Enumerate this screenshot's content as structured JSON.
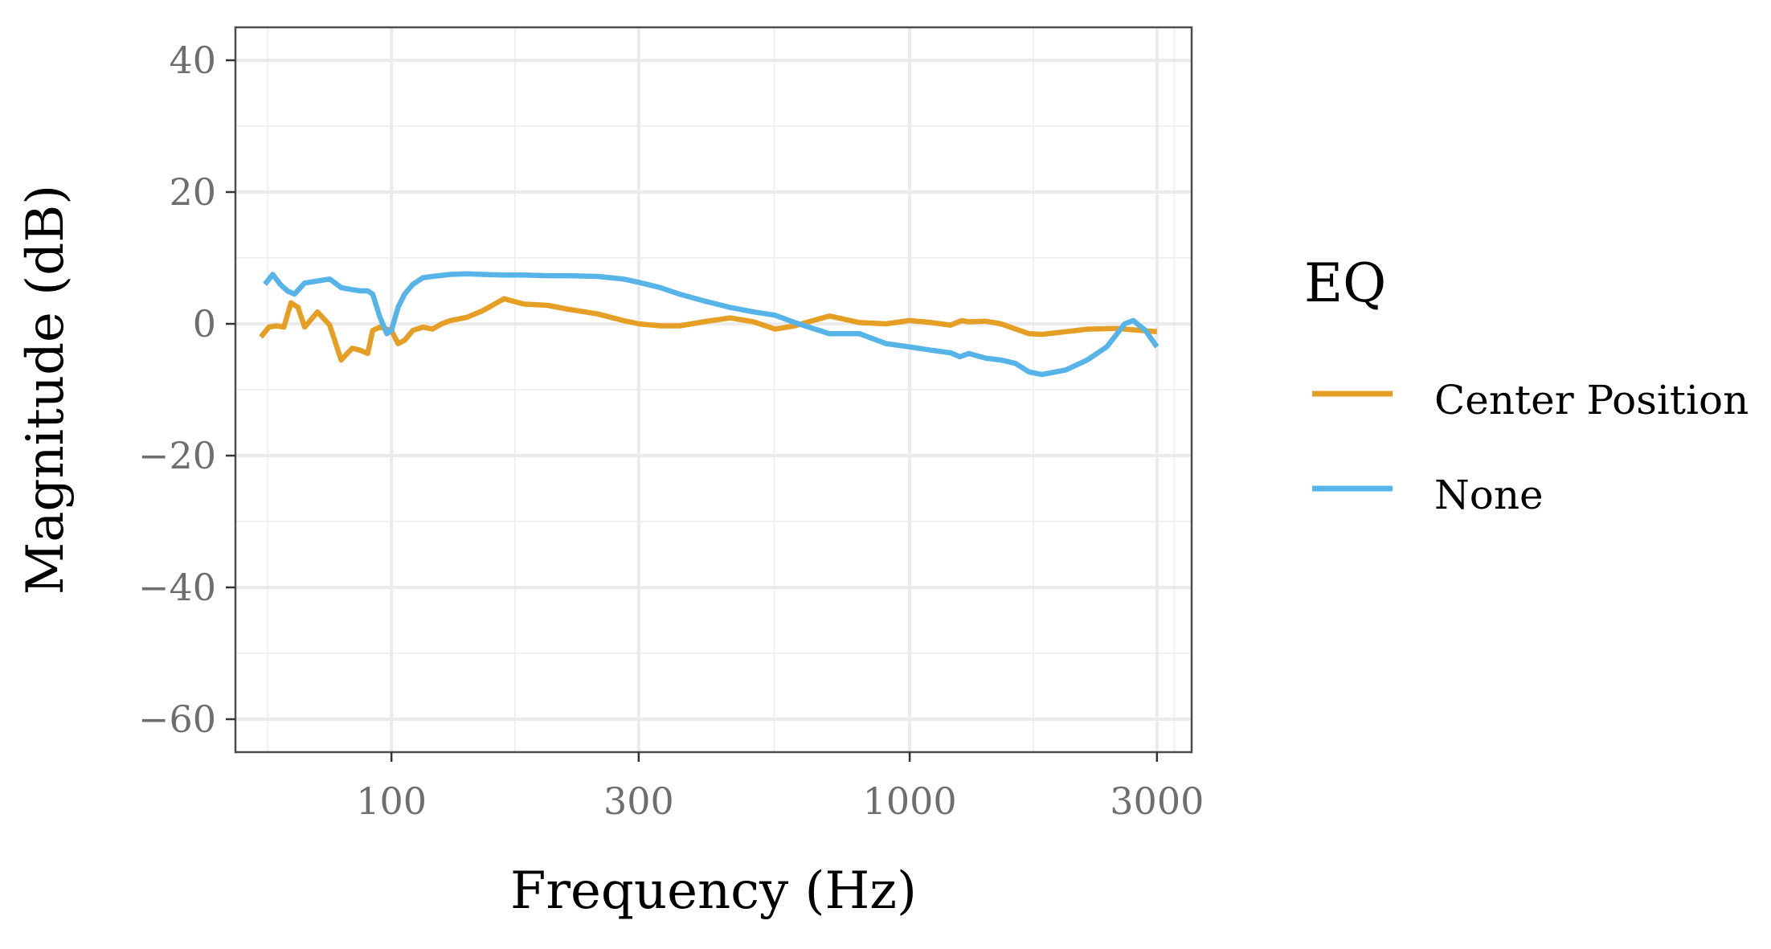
{
  "chart_data": {
    "type": "line",
    "title": "",
    "xlabel": "Frequency (Hz)",
    "ylabel": "Magnitude (dB)",
    "x_scale": "log",
    "xlim": [
      50,
      3500
    ],
    "ylim": [
      -65,
      45
    ],
    "x_ticks": [
      100,
      300,
      1000,
      3000
    ],
    "x_tick_labels": [
      "100",
      "300",
      "1000",
      "3000"
    ],
    "y_ticks": [
      -60,
      -40,
      -20,
      0,
      20,
      40
    ],
    "y_tick_labels": [
      "−60",
      "−40",
      "−20",
      "0",
      "20",
      "40"
    ],
    "grid": true,
    "legend": {
      "title": "EQ",
      "position": "right"
    },
    "series": [
      {
        "name": "Center Position",
        "color": "#E69F25",
        "x": [
          56,
          58,
          60,
          62,
          64,
          66,
          68,
          72,
          76,
          80,
          84,
          87,
          90,
          92,
          95,
          98,
          100,
          103,
          106,
          110,
          115,
          120,
          125,
          130,
          140,
          150,
          165,
          180,
          200,
          220,
          250,
          280,
          300,
          330,
          360,
          400,
          450,
          500,
          550,
          600,
          700,
          800,
          900,
          1000,
          1100,
          1200,
          1260,
          1300,
          1400,
          1500,
          1700,
          1800,
          2000,
          2200,
          2500,
          2800,
          3000
        ],
        "values": [
          -2,
          -0.5,
          -0.3,
          -0.5,
          3.2,
          2.5,
          -0.5,
          1.8,
          -0.2,
          -5.5,
          -3.7,
          -4,
          -4.5,
          -1,
          -0.5,
          -0.8,
          -1,
          -3,
          -2.5,
          -1,
          -0.5,
          -0.8,
          0,
          0.5,
          1,
          2,
          3.8,
          3,
          2.8,
          2.2,
          1.5,
          0.5,
          0,
          -0.3,
          -0.3,
          0.3,
          0.9,
          0.3,
          -0.8,
          -0.3,
          1.2,
          0.2,
          0,
          0.5,
          0.2,
          -0.2,
          0.5,
          0.3,
          0.4,
          0,
          -1.5,
          -1.6,
          -1.2,
          -0.8,
          -0.7,
          -1,
          -1.2
        ]
      },
      {
        "name": "None",
        "color": "#56B4E9",
        "x": [
          57,
          59,
          61,
          63,
          65,
          68,
          72,
          76,
          80,
          84,
          87,
          90,
          92,
          95,
          98,
          100,
          103,
          106,
          110,
          115,
          120,
          130,
          140,
          150,
          165,
          180,
          200,
          220,
          250,
          280,
          300,
          330,
          360,
          400,
          450,
          500,
          550,
          600,
          700,
          800,
          900,
          1000,
          1100,
          1200,
          1250,
          1300,
          1400,
          1500,
          1600,
          1700,
          1800,
          2000,
          2200,
          2400,
          2600,
          2700,
          2850,
          3000
        ],
        "values": [
          6,
          7.5,
          6,
          5,
          4.5,
          6.2,
          6.5,
          6.8,
          5.5,
          5.2,
          5,
          5,
          4.5,
          1,
          -1.5,
          -1,
          2.5,
          4.5,
          6,
          7,
          7.2,
          7.5,
          7.6,
          7.5,
          7.4,
          7.4,
          7.3,
          7.3,
          7.2,
          6.8,
          6.3,
          5.5,
          4.5,
          3.5,
          2.5,
          1.8,
          1.3,
          0.2,
          -1.5,
          -1.5,
          -3,
          -3.5,
          -4,
          -4.4,
          -5,
          -4.5,
          -5.2,
          -5.5,
          -6,
          -7.3,
          -7.7,
          -7,
          -5.5,
          -3.5,
          0,
          0.5,
          -1,
          -3.5
        ]
      }
    ]
  }
}
